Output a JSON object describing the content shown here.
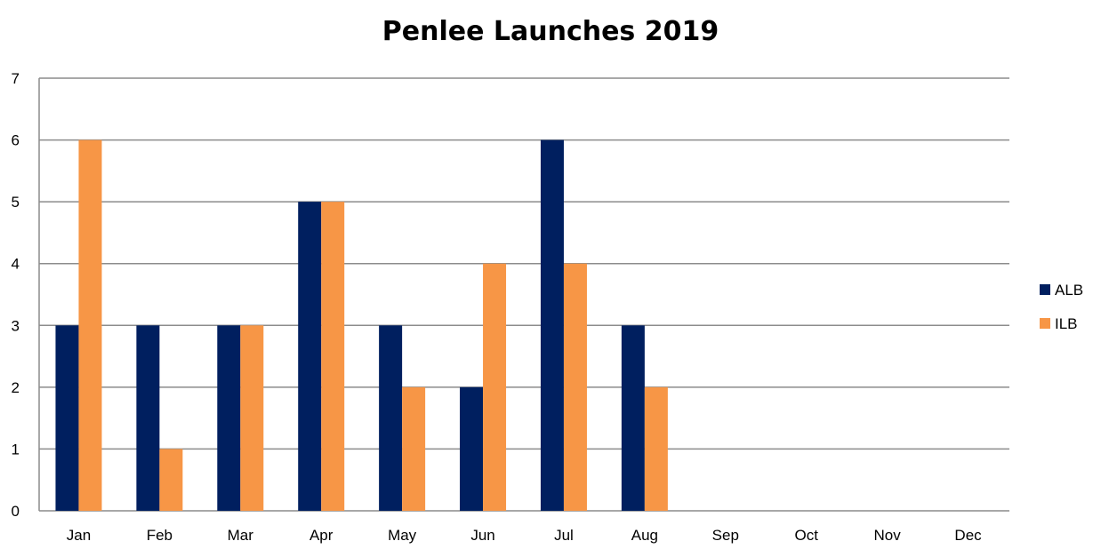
{
  "chart_data": {
    "type": "bar",
    "title": "Penlee Launches 2019",
    "xlabel": "",
    "ylabel": "",
    "categories": [
      "Jan",
      "Feb",
      "Mar",
      "Apr",
      "May",
      "Jun",
      "Jul",
      "Aug",
      "Sep",
      "Oct",
      "Nov",
      "Dec"
    ],
    "series": [
      {
        "name": "ALB",
        "values": [
          3,
          3,
          3,
          5,
          3,
          2,
          6,
          3,
          null,
          null,
          null,
          null
        ]
      },
      {
        "name": "ILB",
        "values": [
          6,
          1,
          3,
          5,
          2,
          4,
          4,
          2,
          null,
          null,
          null,
          null
        ]
      }
    ],
    "ylim": [
      0,
      7
    ],
    "yticks": [
      0,
      1,
      2,
      3,
      4,
      5,
      6,
      7
    ],
    "grid": true,
    "legend_position": "right",
    "colors": {
      "ALB": "#001F5F",
      "ILB": "#F79646"
    }
  }
}
